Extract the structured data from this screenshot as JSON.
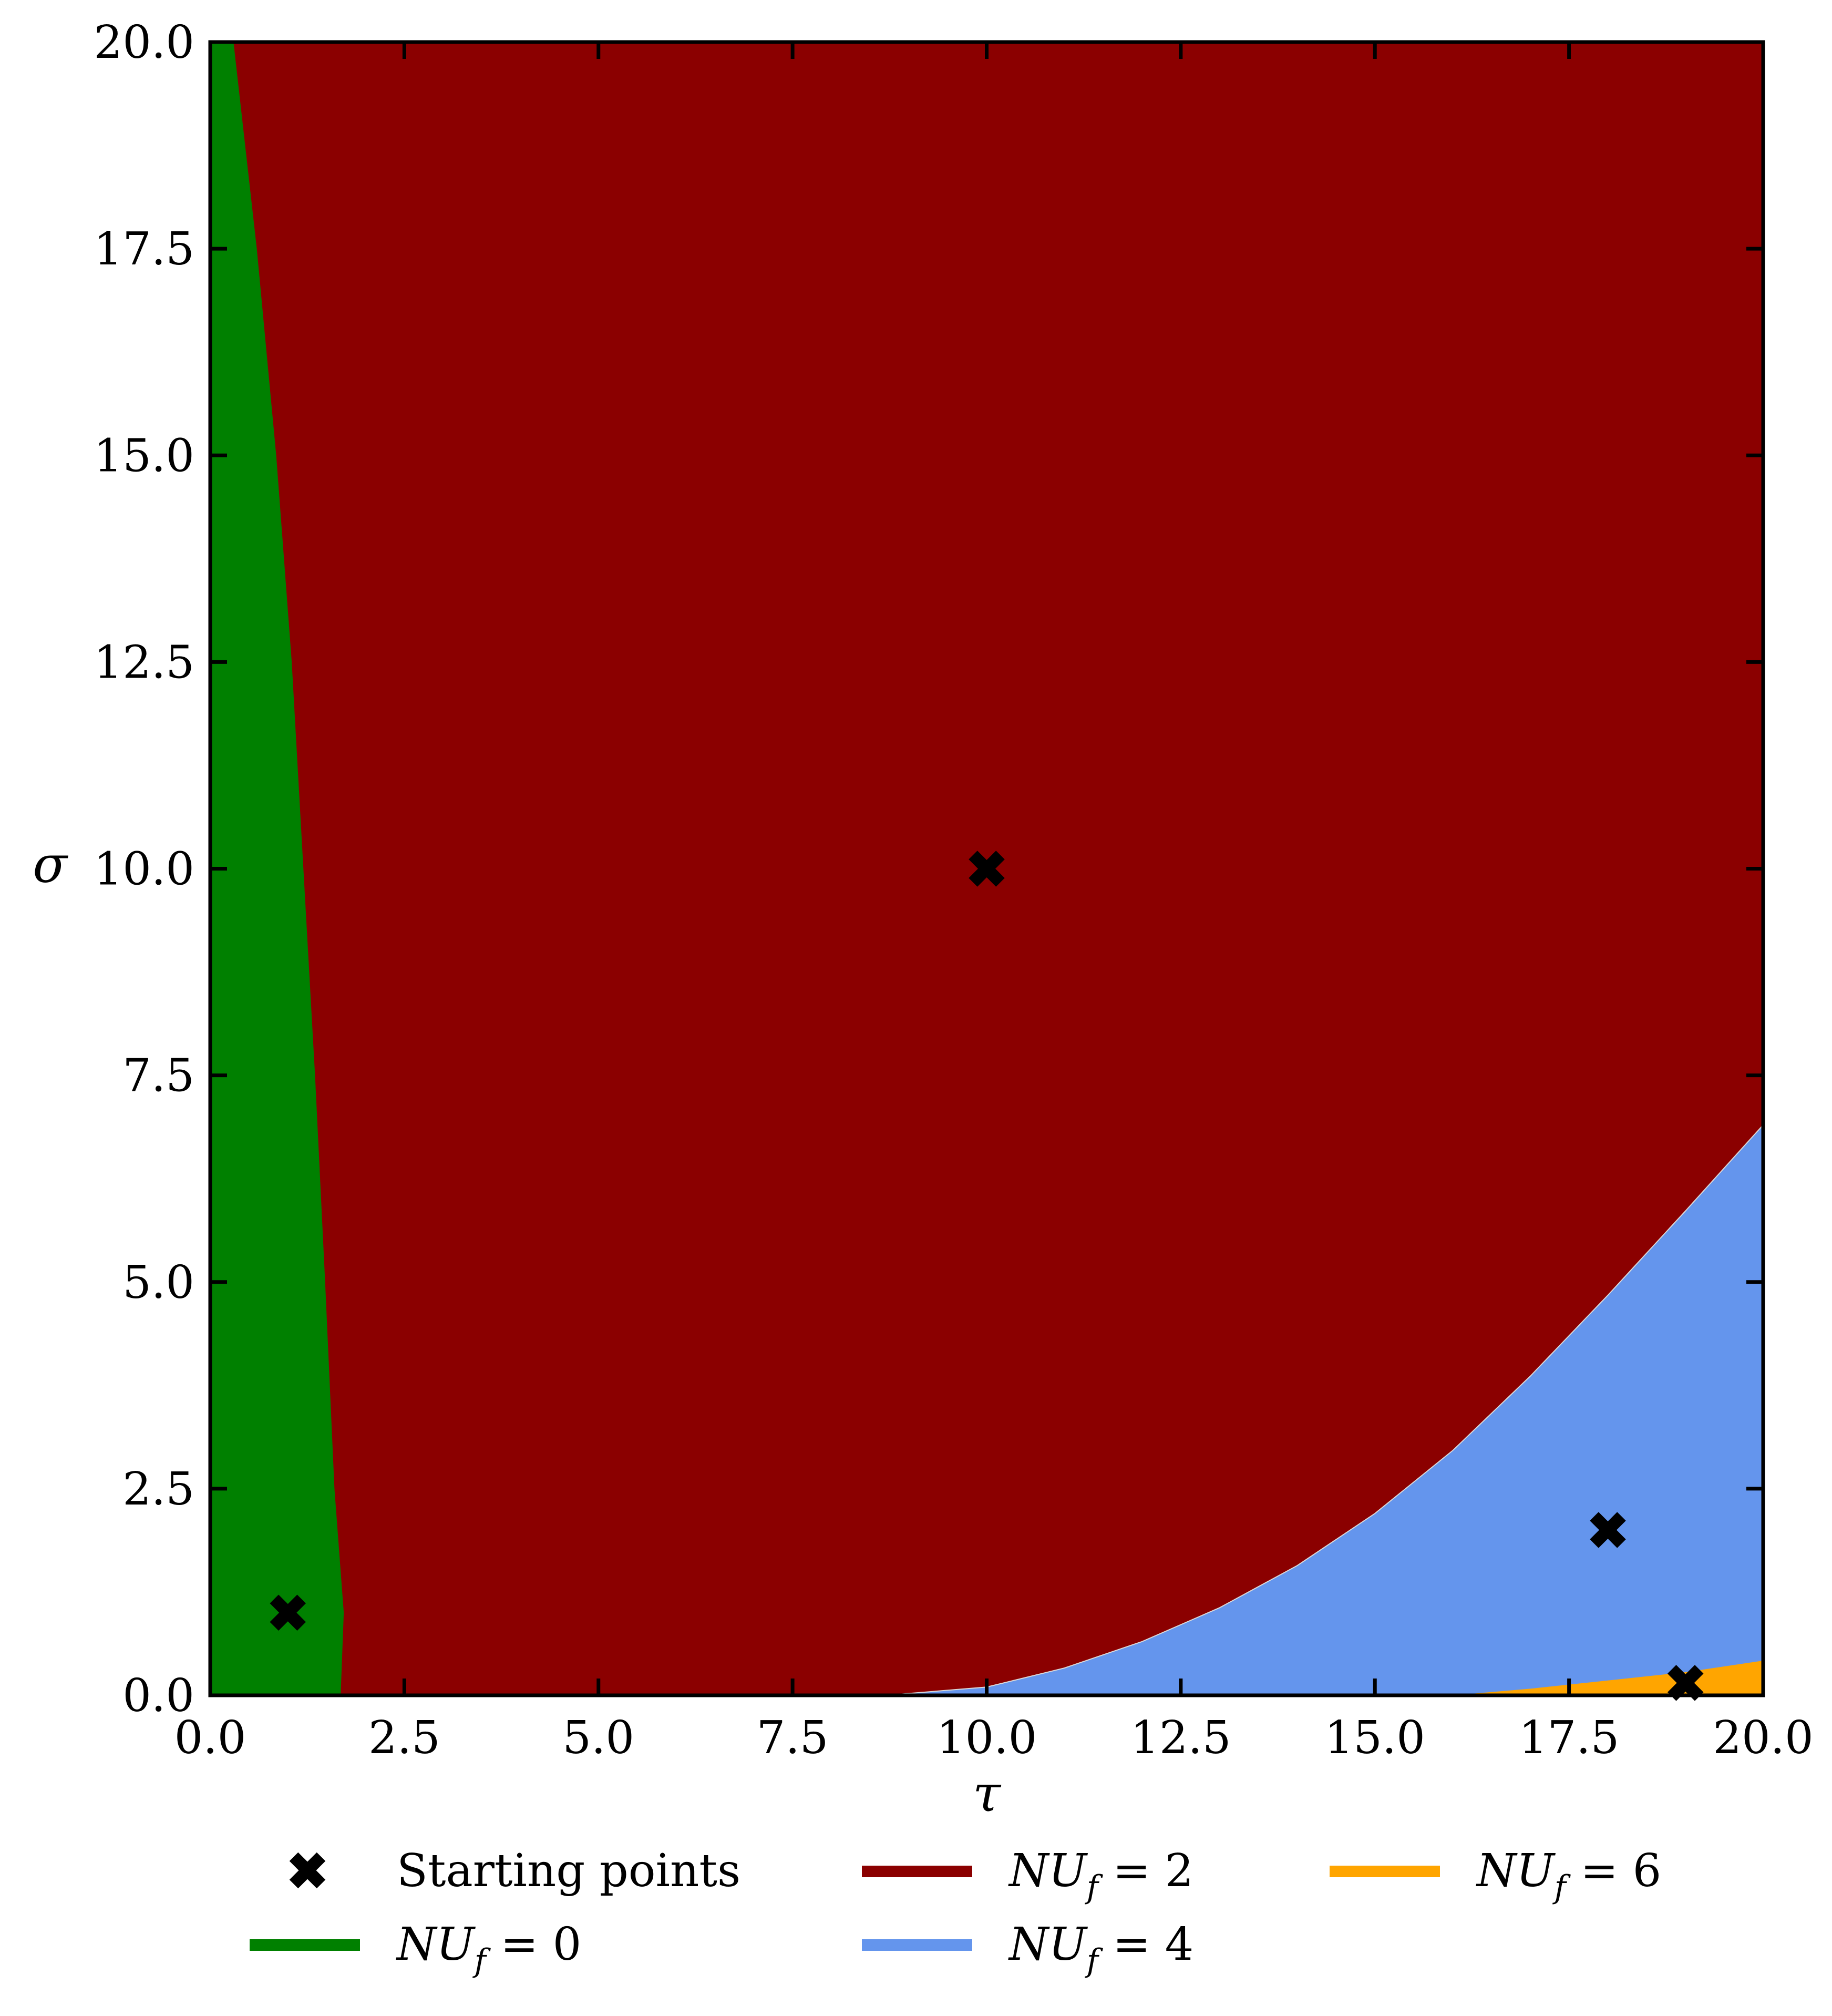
{
  "chart_data": {
    "type": "area",
    "xlabel": "τ",
    "ylabel": "σ",
    "xlim": [
      0,
      20
    ],
    "ylim": [
      0,
      20
    ],
    "x_ticks": [
      "0.0",
      "2.5",
      "5.0",
      "7.5",
      "10.0",
      "12.5",
      "15.0",
      "17.5",
      "20.0"
    ],
    "y_ticks": [
      "0.0",
      "2.5",
      "5.0",
      "7.5",
      "10.0",
      "12.5",
      "15.0",
      "17.5",
      "20.0"
    ],
    "grid": false,
    "legend_placement": "bottom",
    "regions": [
      {
        "name": "NU_f = 0",
        "label_main": "NU",
        "label_sub": "f",
        "label_rest": " = 0",
        "color": "#008000",
        "boundary": [
          [
            0.3,
            20
          ],
          [
            0.6,
            17.5
          ],
          [
            0.85,
            15
          ],
          [
            1.05,
            12.5
          ],
          [
            1.2,
            10
          ],
          [
            1.35,
            7.5
          ],
          [
            1.48,
            5
          ],
          [
            1.6,
            2.5
          ],
          [
            1.72,
            1.0
          ],
          [
            1.68,
            0.0
          ]
        ]
      },
      {
        "name": "NU_f = 2",
        "label_main": "NU",
        "label_sub": "f",
        "label_rest": " = 2",
        "color": "#8b0000"
      },
      {
        "name": "NU_f = 4",
        "label_main": "NU",
        "label_sub": "f",
        "label_rest": " = 4",
        "color": "#6495ed",
        "boundary": [
          [
            8.7,
            0
          ],
          [
            10,
            0.1
          ],
          [
            11,
            0.33
          ],
          [
            12,
            0.65
          ],
          [
            13,
            1.06
          ],
          [
            14,
            1.57
          ],
          [
            15,
            2.2
          ],
          [
            16,
            2.96
          ],
          [
            17,
            3.86
          ],
          [
            18,
            4.84
          ],
          [
            19,
            5.86
          ],
          [
            20,
            6.9
          ]
        ]
      },
      {
        "name": "NU_f = 6",
        "label_main": "NU",
        "label_sub": "f",
        "label_rest": " = 6",
        "color": "#ffa500",
        "boundary": [
          [
            16,
            0
          ],
          [
            17,
            0.08
          ],
          [
            18,
            0.18
          ],
          [
            19,
            0.28
          ],
          [
            20,
            0.42
          ]
        ]
      }
    ],
    "starting_points": {
      "name": "Starting points",
      "x": [
        1.0,
        10.0,
        18.0,
        19.0
      ],
      "y": [
        1.0,
        10.0,
        2.0,
        0.15
      ]
    },
    "legend": {
      "starting_points_label": "Starting points"
    }
  }
}
